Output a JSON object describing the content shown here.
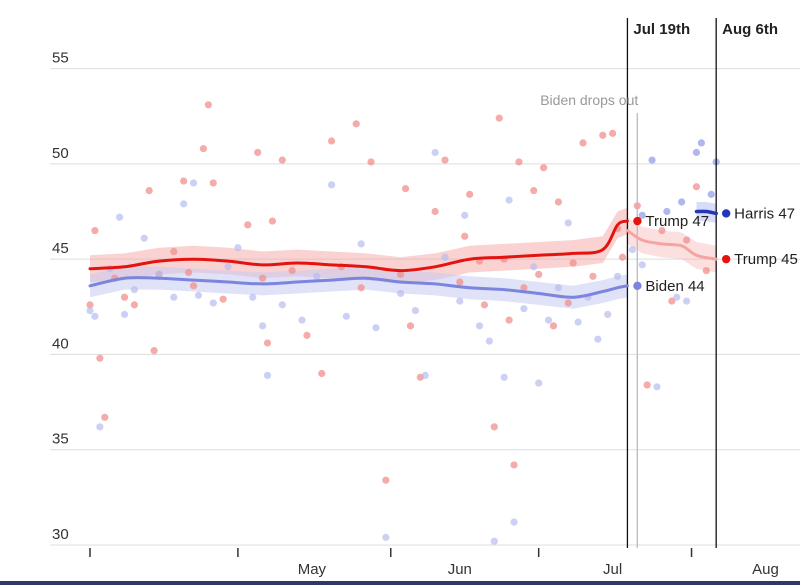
{
  "chart_data": {
    "type": "line",
    "title": "",
    "xlabel": "",
    "ylabel": "",
    "ylim": [
      30,
      56.5
    ],
    "y_ticks": [
      30,
      35,
      40,
      45,
      50,
      55
    ],
    "x_ticks": [
      "May",
      "Jun",
      "Jul",
      "Aug"
    ],
    "grid": true,
    "colors": {
      "trump": "#e3140f",
      "trump_light": "#f4a5a3",
      "biden": "#7b85e0",
      "biden_light": "#c7cbf3",
      "harris": "#2436b8",
      "harris_light": "#aab1ec",
      "gridline": "#dddddd",
      "axis": "#333333"
    },
    "events": [
      {
        "label": "Jul 19th",
        "date": "2024-07-19"
      },
      {
        "label": "Aug 6th",
        "date": "2024-08-06"
      }
    ],
    "annotations": [
      {
        "label": "Biden drops out",
        "date": "2024-07-21"
      }
    ],
    "series": [
      {
        "name": "Trump",
        "end_label": "Trump 47",
        "x": [
          "2024-04-01",
          "2024-04-08",
          "2024-04-15",
          "2024-04-22",
          "2024-04-29",
          "2024-05-06",
          "2024-05-13",
          "2024-05-20",
          "2024-05-27",
          "2024-06-03",
          "2024-06-10",
          "2024-06-17",
          "2024-06-24",
          "2024-07-01",
          "2024-07-08",
          "2024-07-14",
          "2024-07-17",
          "2024-07-19"
        ],
        "values": [
          44.5,
          44.6,
          44.9,
          45.0,
          44.9,
          44.7,
          44.8,
          44.7,
          44.6,
          44.4,
          44.6,
          45.0,
          45.1,
          45.2,
          45.3,
          45.5,
          46.8,
          47.0
        ]
      },
      {
        "name": "Biden",
        "end_label": "Biden 44",
        "x": [
          "2024-04-01",
          "2024-04-08",
          "2024-04-15",
          "2024-04-22",
          "2024-04-29",
          "2024-05-06",
          "2024-05-13",
          "2024-05-20",
          "2024-05-27",
          "2024-06-03",
          "2024-06-10",
          "2024-06-17",
          "2024-06-24",
          "2024-07-01",
          "2024-07-08",
          "2024-07-14",
          "2024-07-17",
          "2024-07-19"
        ],
        "values": [
          43.6,
          44.0,
          44.0,
          43.9,
          43.8,
          43.7,
          43.8,
          43.9,
          44.0,
          43.8,
          43.7,
          43.5,
          43.4,
          43.2,
          43.0,
          43.3,
          43.5,
          43.6
        ]
      },
      {
        "name": "Trump",
        "end_label": "Trump 45",
        "x": [
          "2024-07-19",
          "2024-07-22",
          "2024-07-26",
          "2024-07-30",
          "2024-08-02",
          "2024-08-06"
        ],
        "values": [
          46.5,
          46.0,
          45.8,
          45.7,
          45.2,
          45.0
        ]
      },
      {
        "name": "Harris",
        "end_label": "Harris 47",
        "x": [
          "2024-08-02",
          "2024-08-04",
          "2024-08-06"
        ],
        "values": [
          47.5,
          47.5,
          47.4
        ]
      }
    ],
    "poll_dots": {
      "trump": [
        [
          "2024-04-01",
          42.6
        ],
        [
          "2024-04-02",
          46.5
        ],
        [
          "2024-04-03",
          39.8
        ],
        [
          "2024-04-04",
          36.7
        ],
        [
          "2024-04-06",
          44.0
        ],
        [
          "2024-04-08",
          43.0
        ],
        [
          "2024-04-10",
          42.6
        ],
        [
          "2024-04-13",
          48.6
        ],
        [
          "2024-04-14",
          40.2
        ],
        [
          "2024-04-15",
          44.2
        ],
        [
          "2024-04-18",
          45.4
        ],
        [
          "2024-04-20",
          49.1
        ],
        [
          "2024-04-21",
          44.3
        ],
        [
          "2024-04-22",
          43.6
        ],
        [
          "2024-04-24",
          50.8
        ],
        [
          "2024-04-25",
          53.1
        ],
        [
          "2024-04-26",
          49.0
        ],
        [
          "2024-04-28",
          42.9
        ],
        [
          "2024-05-03",
          46.8
        ],
        [
          "2024-05-05",
          50.6
        ],
        [
          "2024-05-06",
          44.0
        ],
        [
          "2024-05-07",
          40.6
        ],
        [
          "2024-05-08",
          47.0
        ],
        [
          "2024-05-10",
          50.2
        ],
        [
          "2024-05-12",
          44.4
        ],
        [
          "2024-05-15",
          41.0
        ],
        [
          "2024-05-18",
          39.0
        ],
        [
          "2024-05-20",
          51.2
        ],
        [
          "2024-05-22",
          44.6
        ],
        [
          "2024-05-25",
          52.1
        ],
        [
          "2024-05-26",
          43.5
        ],
        [
          "2024-05-28",
          50.1
        ],
        [
          "2024-05-31",
          33.4
        ],
        [
          "2024-06-03",
          44.2
        ],
        [
          "2024-06-04",
          48.7
        ],
        [
          "2024-06-05",
          41.5
        ],
        [
          "2024-06-07",
          38.8
        ],
        [
          "2024-06-10",
          47.5
        ],
        [
          "2024-06-12",
          50.2
        ],
        [
          "2024-06-15",
          43.8
        ],
        [
          "2024-06-16",
          46.2
        ],
        [
          "2024-06-17",
          48.4
        ],
        [
          "2024-06-19",
          44.9
        ],
        [
          "2024-06-20",
          42.6
        ],
        [
          "2024-06-22",
          36.2
        ],
        [
          "2024-06-23",
          52.4
        ],
        [
          "2024-06-24",
          45.0
        ],
        [
          "2024-06-25",
          41.8
        ],
        [
          "2024-06-26",
          34.2
        ],
        [
          "2024-06-27",
          50.1
        ],
        [
          "2024-06-28",
          43.5
        ],
        [
          "2024-06-30",
          48.6
        ],
        [
          "2024-07-01",
          44.2
        ],
        [
          "2024-07-02",
          49.8
        ],
        [
          "2024-07-04",
          41.5
        ],
        [
          "2024-07-05",
          48.0
        ],
        [
          "2024-07-07",
          42.7
        ],
        [
          "2024-07-08",
          44.8
        ],
        [
          "2024-07-10",
          51.1
        ],
        [
          "2024-07-12",
          44.1
        ],
        [
          "2024-07-14",
          51.5
        ],
        [
          "2024-07-16",
          51.6
        ],
        [
          "2024-07-17",
          46.6
        ],
        [
          "2024-07-18",
          45.1
        ],
        [
          "2024-07-21",
          47.8
        ],
        [
          "2024-07-23",
          38.4
        ],
        [
          "2024-07-26",
          46.5
        ],
        [
          "2024-07-28",
          42.8
        ],
        [
          "2024-07-31",
          46.0
        ],
        [
          "2024-08-02",
          48.8
        ],
        [
          "2024-08-04",
          44.4
        ]
      ],
      "biden": [
        [
          "2024-04-01",
          42.3
        ],
        [
          "2024-04-02",
          42.0
        ],
        [
          "2024-04-03",
          36.2
        ],
        [
          "2024-04-05",
          44.5
        ],
        [
          "2024-04-07",
          47.2
        ],
        [
          "2024-04-08",
          42.1
        ],
        [
          "2024-04-10",
          43.4
        ],
        [
          "2024-04-12",
          46.1
        ],
        [
          "2024-04-15",
          44.2
        ],
        [
          "2024-04-18",
          43.0
        ],
        [
          "2024-04-20",
          47.9
        ],
        [
          "2024-04-22",
          49.0
        ],
        [
          "2024-04-23",
          43.1
        ],
        [
          "2024-04-26",
          42.7
        ],
        [
          "2024-04-29",
          44.6
        ],
        [
          "2024-05-01",
          45.6
        ],
        [
          "2024-05-04",
          43.0
        ],
        [
          "2024-05-06",
          41.5
        ],
        [
          "2024-05-07",
          38.9
        ],
        [
          "2024-05-10",
          42.6
        ],
        [
          "2024-05-14",
          41.8
        ],
        [
          "2024-05-17",
          44.1
        ],
        [
          "2024-05-20",
          48.9
        ],
        [
          "2024-05-23",
          42.0
        ],
        [
          "2024-05-26",
          45.8
        ],
        [
          "2024-05-29",
          41.4
        ],
        [
          "2024-05-31",
          30.4
        ],
        [
          "2024-06-03",
          43.2
        ],
        [
          "2024-06-06",
          42.3
        ],
        [
          "2024-06-08",
          38.9
        ],
        [
          "2024-06-10",
          50.6
        ],
        [
          "2024-06-12",
          45.1
        ],
        [
          "2024-06-15",
          42.8
        ],
        [
          "2024-06-16",
          47.3
        ],
        [
          "2024-06-19",
          41.5
        ],
        [
          "2024-06-21",
          40.7
        ],
        [
          "2024-06-22",
          30.2
        ],
        [
          "2024-06-24",
          38.8
        ],
        [
          "2024-06-25",
          48.1
        ],
        [
          "2024-06-26",
          31.2
        ],
        [
          "2024-06-28",
          42.4
        ],
        [
          "2024-06-30",
          44.6
        ],
        [
          "2024-07-01",
          38.5
        ],
        [
          "2024-07-03",
          41.8
        ],
        [
          "2024-07-05",
          43.5
        ],
        [
          "2024-07-07",
          46.9
        ],
        [
          "2024-07-09",
          41.7
        ],
        [
          "2024-07-11",
          43.0
        ],
        [
          "2024-07-13",
          40.8
        ],
        [
          "2024-07-15",
          42.1
        ],
        [
          "2024-07-17",
          44.1
        ],
        [
          "2024-07-20",
          45.5
        ],
        [
          "2024-07-22",
          44.7
        ],
        [
          "2024-07-25",
          38.3
        ],
        [
          "2024-07-29",
          43.0
        ],
        [
          "2024-07-31",
          42.8
        ]
      ],
      "harris": [
        [
          "2024-07-22",
          47.3
        ],
        [
          "2024-07-24",
          50.2
        ],
        [
          "2024-07-27",
          47.5
        ],
        [
          "2024-07-30",
          48.0
        ],
        [
          "2024-08-02",
          50.6
        ],
        [
          "2024-08-03",
          51.1
        ],
        [
          "2024-08-05",
          48.4
        ],
        [
          "2024-08-06",
          50.1
        ]
      ]
    }
  }
}
